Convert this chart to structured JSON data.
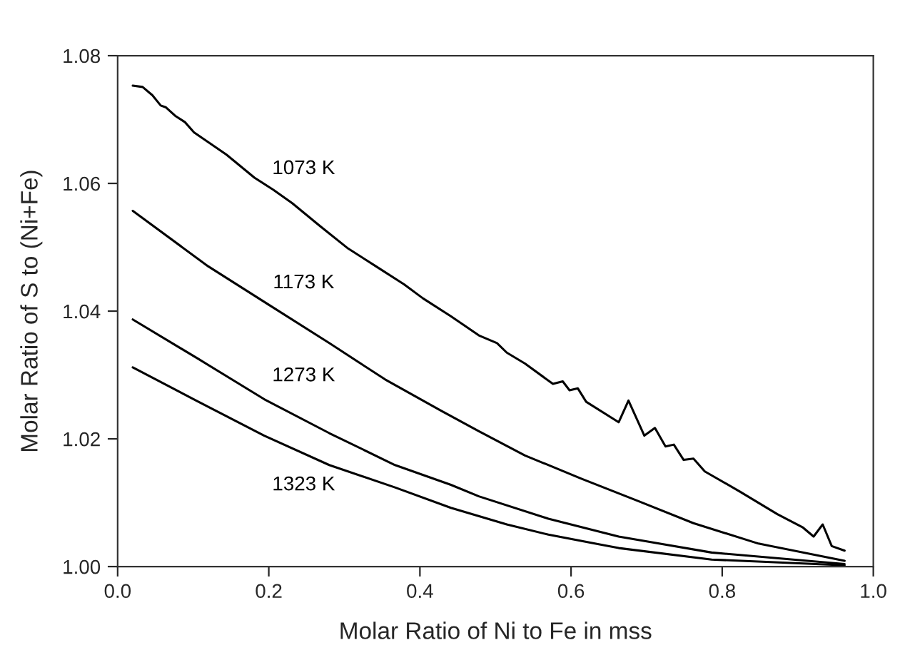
{
  "chart_data": {
    "type": "line",
    "xlabel": "Molar Ratio of Ni to Fe in mss",
    "ylabel": "Molar Ratio of S to (Ni+Fe)",
    "xlim": [
      0.0,
      1.0
    ],
    "ylim": [
      1.0,
      1.08
    ],
    "xticks": [
      {
        "value": 0.0,
        "label": "0.0"
      },
      {
        "value": 0.2,
        "label": "0.2"
      },
      {
        "value": 0.4,
        "label": "0.4"
      },
      {
        "value": 0.6,
        "label": "0.6"
      },
      {
        "value": 0.8,
        "label": "0.8"
      },
      {
        "value": 1.0,
        "label": "1.0"
      }
    ],
    "yticks": [
      {
        "value": 1.0,
        "label": "1.00"
      },
      {
        "value": 1.02,
        "label": "1.02"
      },
      {
        "value": 1.04,
        "label": "1.04"
      },
      {
        "value": 1.06,
        "label": "1.06"
      },
      {
        "value": 1.08,
        "label": "1.08"
      }
    ],
    "grid": false,
    "legend": false,
    "marker": "none",
    "line_style": "solid",
    "series": [
      {
        "name": "1073 K",
        "color": "#000000",
        "x": [
          0.02,
          0.033,
          0.046,
          0.057,
          0.064,
          0.076,
          0.089,
          0.101,
          0.144,
          0.181,
          0.206,
          0.231,
          0.268,
          0.305,
          0.342,
          0.379,
          0.404,
          0.441,
          0.478,
          0.502,
          0.515,
          0.539,
          0.576,
          0.589,
          0.598,
          0.609,
          0.62,
          0.663,
          0.676,
          0.697,
          0.711,
          0.725,
          0.736,
          0.749,
          0.762,
          0.777,
          0.824,
          0.873,
          0.907,
          0.921,
          0.933,
          0.945,
          0.962
        ],
        "values": [
          1.0753,
          1.0751,
          1.0738,
          1.0722,
          1.0719,
          1.0706,
          1.0696,
          1.068,
          1.0645,
          1.0609,
          1.059,
          1.0569,
          1.0533,
          1.0498,
          1.047,
          1.0442,
          1.042,
          1.0392,
          1.0362,
          1.035,
          1.0335,
          1.0318,
          1.0286,
          1.029,
          1.0276,
          1.0279,
          1.0258,
          1.0226,
          1.026,
          1.0205,
          1.0217,
          1.0188,
          1.0191,
          1.0167,
          1.0169,
          1.0149,
          1.0117,
          1.0082,
          1.0061,
          1.0047,
          1.0066,
          1.0032,
          1.0025
        ]
      },
      {
        "name": "1173 K",
        "color": "#000000",
        "x": [
          0.02,
          0.12,
          0.2,
          0.28,
          0.354,
          0.428,
          0.478,
          0.539,
          0.613,
          0.688,
          0.762,
          0.848,
          0.962
        ],
        "values": [
          1.0557,
          1.047,
          1.041,
          1.035,
          1.0293,
          1.0244,
          1.0212,
          1.0174,
          1.0138,
          1.0103,
          1.0068,
          1.0036,
          1.0009
        ]
      },
      {
        "name": "1273 K",
        "color": "#000000",
        "x": [
          0.02,
          0.107,
          0.194,
          0.28,
          0.367,
          0.441,
          0.478,
          0.57,
          0.663,
          0.786,
          0.962
        ],
        "values": [
          1.0387,
          1.0325,
          1.0262,
          1.0209,
          1.0159,
          1.0128,
          1.011,
          1.0075,
          1.0047,
          1.0022,
          1.0004
        ]
      },
      {
        "name": "1323 K",
        "color": "#000000",
        "x": [
          0.02,
          0.107,
          0.194,
          0.28,
          0.367,
          0.441,
          0.515,
          0.57,
          0.663,
          0.786,
          0.962
        ],
        "values": [
          1.0312,
          1.0258,
          1.0205,
          1.0159,
          1.0124,
          1.0092,
          1.0066,
          1.005,
          1.0029,
          1.0011,
          1.0002
        ]
      }
    ]
  }
}
